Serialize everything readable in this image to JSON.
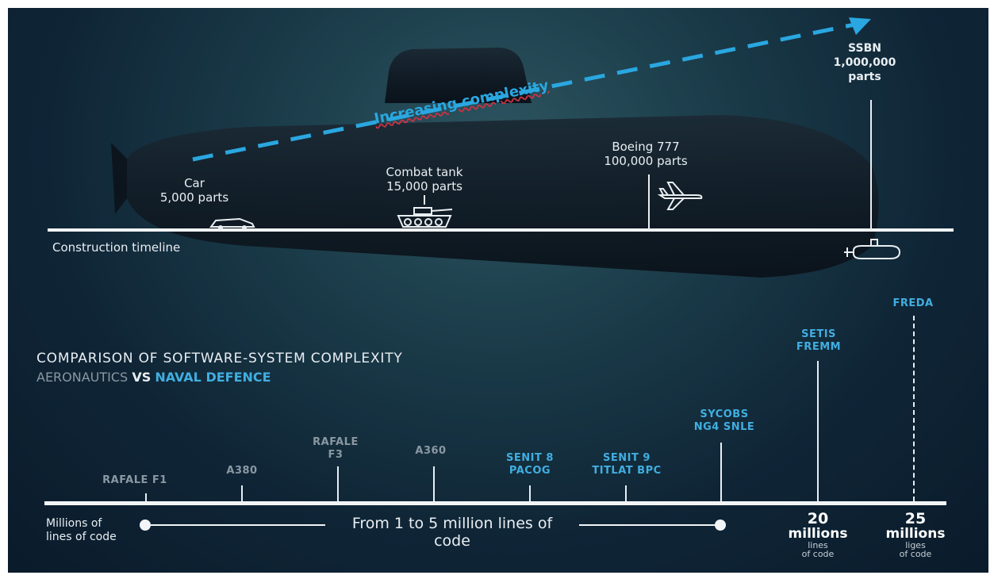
{
  "upper": {
    "trend_label": "Increasing complexity",
    "timeline_label": "Construction timeline",
    "milestones": [
      {
        "name": "Car",
        "parts": "5,000 parts"
      },
      {
        "name": "Combat tank",
        "parts": "15,000 parts"
      },
      {
        "name": "Boeing 777",
        "parts": "100,000 parts"
      },
      {
        "name": "SSBN",
        "parts_num": "1,000,000",
        "parts_word": "parts"
      }
    ]
  },
  "lower": {
    "title": "COMPARISON OF SOFTWARE-SYSTEM COMPLEXITY",
    "subtitle_aero": "AERONAUTICS",
    "subtitle_vs": "VS",
    "subtitle_naval": "NAVAL DEFENCE",
    "axis_label_line1": "Millions of",
    "axis_label_line2": "lines of code",
    "range_line1": "From 1 to 5 million lines of",
    "range_line2": "code",
    "systems": [
      {
        "line1": "RAFALE F1",
        "line2": ""
      },
      {
        "line1": "A380",
        "line2": ""
      },
      {
        "line1": "RAFALE",
        "line2": "F3"
      },
      {
        "line1": "A360",
        "line2": ""
      },
      {
        "line1": "SENIT 8",
        "line2": "PACOG"
      },
      {
        "line1": "SENIT 9",
        "line2": "TITLAT BPC"
      },
      {
        "line1": "SYCOBS",
        "line2": "NG4 SNLE"
      },
      {
        "line1": "SETIS",
        "line2": "FREMM"
      },
      {
        "line1": "FREDA",
        "line2": ""
      }
    ],
    "big20": {
      "num": "20",
      "unit": "millions",
      "s1": "lines",
      "s2": "of code"
    },
    "big25": {
      "num": "25",
      "unit": "millions",
      "s1": "liges",
      "s2": "of code"
    }
  },
  "colors": {
    "accent_blue": "#41aee0",
    "aero_grey": "#8a98a2",
    "trend_line": "#2aa7e0",
    "background": "#0f2536"
  }
}
